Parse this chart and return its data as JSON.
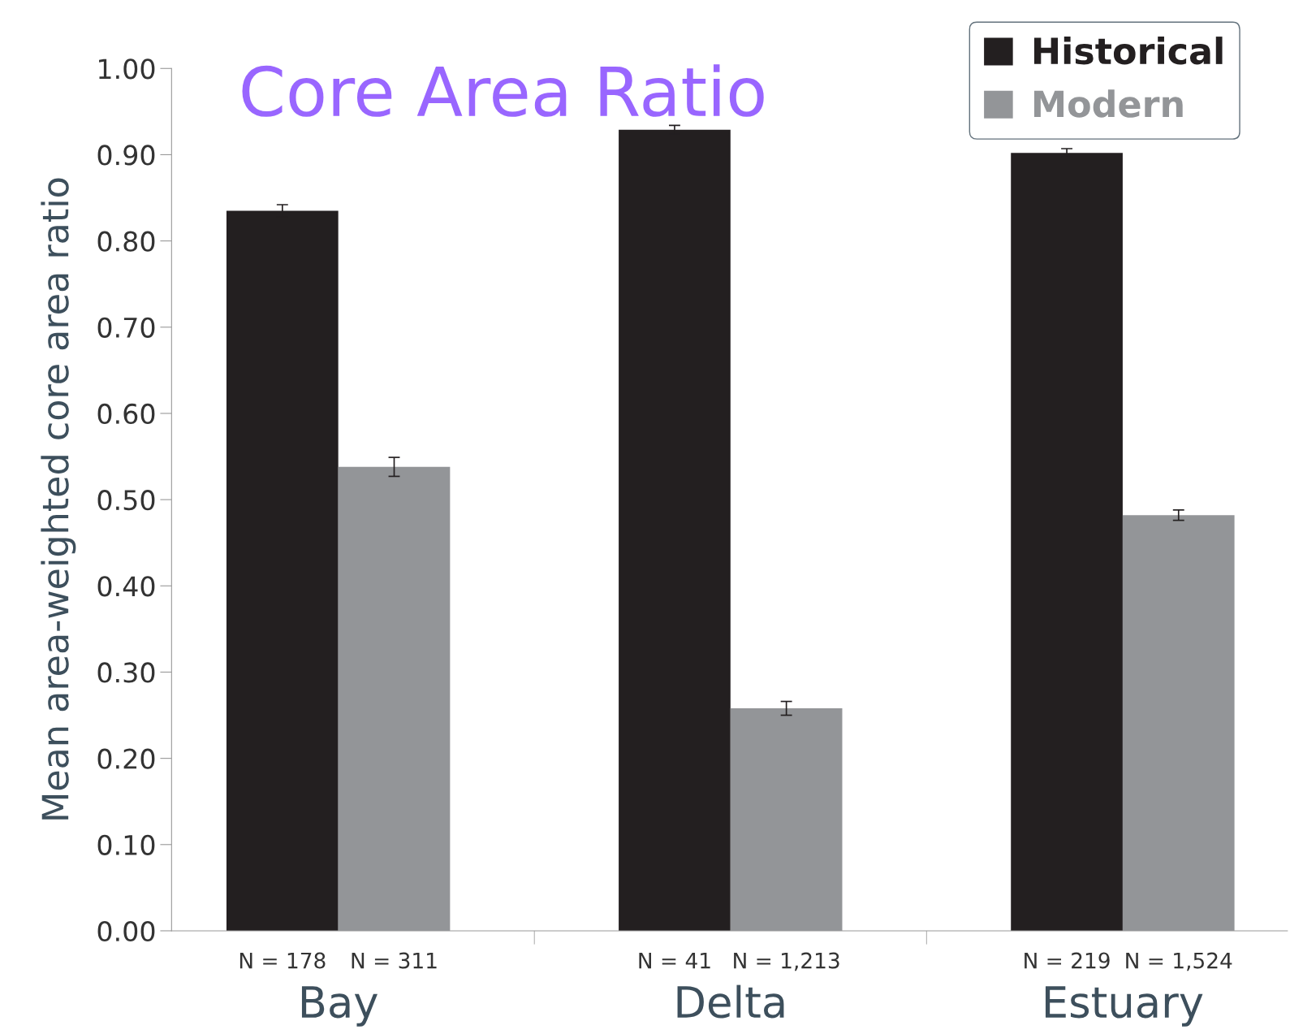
{
  "chart_data": {
    "type": "bar",
    "title": "Core Area Ratio",
    "ylabel": "Mean area-weighted core area ratio",
    "categories": [
      "Bay",
      "Delta",
      "Estuary"
    ],
    "series": [
      {
        "name": "Historical",
        "color": "#231f20",
        "values": [
          0.835,
          0.929,
          0.902
        ],
        "errors": [
          0.007,
          0.005,
          0.005
        ]
      },
      {
        "name": "Modern",
        "color": "#939598",
        "values": [
          0.538,
          0.258,
          0.482
        ],
        "errors": [
          0.011,
          0.008,
          0.006
        ]
      }
    ],
    "annotations": [
      "N = 178",
      "N = 311",
      "N = 41",
      "N = 1,213",
      "N = 219",
      "N = 1,524"
    ],
    "ylim": [
      0,
      1.0
    ],
    "yticks": [
      {
        "value": 0,
        "label": "0.00"
      },
      {
        "value": 0.1,
        "label": "0.10"
      },
      {
        "value": 0.2,
        "label": "0.20"
      },
      {
        "value": 0.3,
        "label": "0.30"
      },
      {
        "value": 0.4,
        "label": "0.40"
      },
      {
        "value": 0.5,
        "label": "0.50"
      },
      {
        "value": 0.6,
        "label": "0.60"
      },
      {
        "value": 0.7,
        "label": "0.70"
      },
      {
        "value": 0.8,
        "label": "0.80"
      },
      {
        "value": 0.9,
        "label": "0.90"
      },
      {
        "value": 1.0,
        "label": "1.00"
      }
    ],
    "grid": false,
    "legend": "top right"
  }
}
